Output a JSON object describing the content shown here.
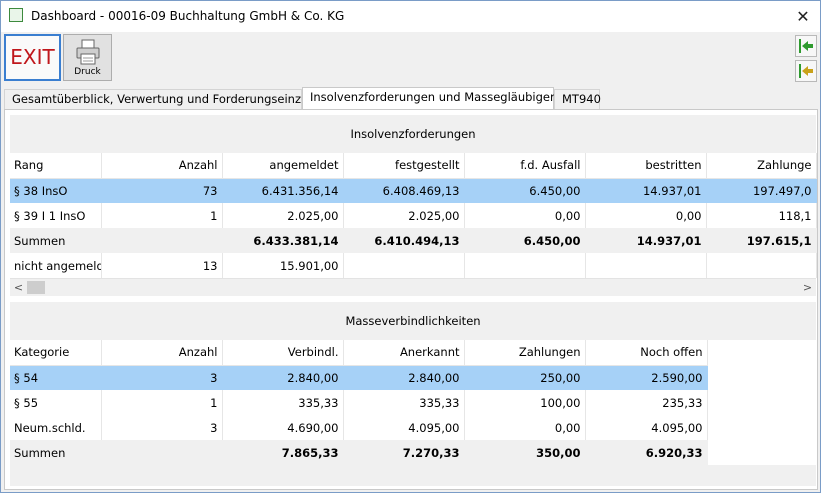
{
  "window": {
    "title": "Dashboard - 00016-09 Buchhaltung GmbH & Co. KG",
    "close_glyph": "✕"
  },
  "toolbar": {
    "exit_label": "EXIT",
    "print_label": "Druck"
  },
  "tabs": [
    {
      "label": "Gesamtüberblick, Verwertung und Forderungseinzug",
      "active": false
    },
    {
      "label": "Insolvenzforderungen und Massegläubiger",
      "active": true
    },
    {
      "label": "MT940",
      "active": false
    }
  ],
  "insolvenz": {
    "title": "Insolvenzforderungen",
    "headers": [
      "Rang",
      "Anzahl",
      "angemeldet",
      "festgestellt",
      "f.d. Ausfall",
      "bestritten",
      "Zahlunge"
    ],
    "rows": [
      [
        "§ 38 InsO",
        "73",
        "6.431.356,14",
        "6.408.469,13",
        "6.450,00",
        "14.937,01",
        "197.497,0"
      ],
      [
        "§ 39 I 1 InsO",
        "1",
        "2.025,00",
        "2.025,00",
        "0,00",
        "0,00",
        "118,1"
      ],
      [
        "Summen",
        "",
        "6.433.381,14",
        "6.410.494,13",
        "6.450,00",
        "14.937,01",
        "197.615,1"
      ],
      [
        "nicht angemeldet",
        "13",
        "15.901,00",
        "",
        "",
        "",
        ""
      ]
    ],
    "scroll_left": "<",
    "scroll_right": ">"
  },
  "masse": {
    "title": "Masseverbindlichkeiten",
    "headers": [
      "Kategorie",
      "Anzahl",
      "Verbindl.",
      "Anerkannt",
      "Zahlungen",
      "Noch offen"
    ],
    "rows": [
      [
        "§ 54",
        "3",
        "2.840,00",
        "2.840,00",
        "250,00",
        "2.590,00"
      ],
      [
        "§ 55",
        "1",
        "335,33",
        "335,33",
        "100,00",
        "235,33"
      ],
      [
        "Neum.schld.",
        "3",
        "4.690,00",
        "4.095,00",
        "0,00",
        "4.095,00"
      ],
      [
        "Summen",
        "",
        "7.865,33",
        "7.270,33",
        "350,00",
        "6.920,33"
      ]
    ]
  },
  "colors": {
    "selection": "#a6d1f7",
    "exit_text": "#c0171c",
    "nav_arrow": "#2e9a2e"
  },
  "icons": [
    "app-icon",
    "close-icon",
    "printer-icon",
    "arrow-left-icon",
    "arrow-left-end-icon"
  ]
}
